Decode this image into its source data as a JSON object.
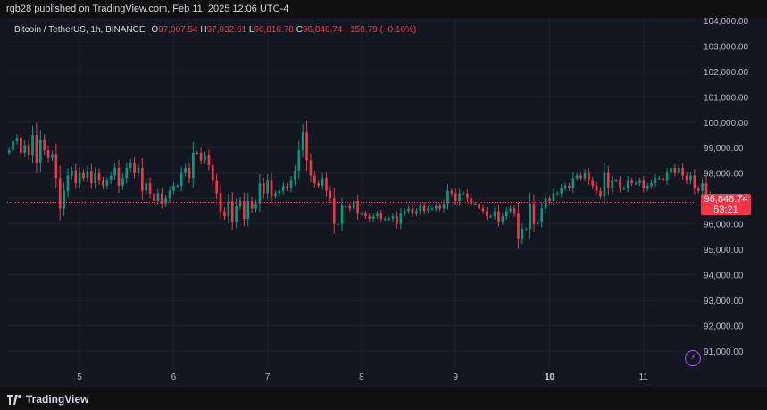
{
  "header": {
    "publish_text": "rgb28 published on TradingView.com, Feb 11, 2025 12:06 UTC-4"
  },
  "legend": {
    "symbol": "Bitcoin / TetherUS, 1h, BINANCE",
    "o_label": "O",
    "o_value": "97,007.54",
    "h_label": "H",
    "h_value": "97,032.61",
    "l_label": "L",
    "l_value": "96,816.78",
    "c_label": "C",
    "c_value": "96,848.74",
    "change": "−158.79 (−0.16%)"
  },
  "price_tag": {
    "price": "96,848.74",
    "countdown": "53:21"
  },
  "footer": {
    "brand": "TradingView"
  },
  "colors": {
    "up": "#089981",
    "down": "#f23645",
    "bg": "#131722",
    "grid": "#1e222d",
    "text": "#b2b5be",
    "last_line": "#f23645",
    "bolt": "#b24bf3"
  },
  "icons": {
    "bolt": "lightning-icon",
    "logo": "tradingview-logo-icon"
  },
  "chart_data": {
    "type": "candlestick",
    "interval": "1h",
    "ylim": [
      90300,
      104100
    ],
    "y_ticks": [
      91000,
      92000,
      93000,
      94000,
      95000,
      96000,
      97000,
      98000,
      99000,
      100000,
      101000,
      102000,
      103000,
      104000
    ],
    "y_tick_labels": [
      "91,000.00",
      "92,000.00",
      "93,000.00",
      "94,000.00",
      "95,000.00",
      "96,000.00",
      "97,000.00",
      "98,000.00",
      "99,000.00",
      "100,000.00",
      "101,000.00",
      "102,000.00",
      "103,000.00",
      "104,000.00"
    ],
    "x_ticks": [
      {
        "label": "5",
        "x": 18
      },
      {
        "label": "6",
        "x": 42
      },
      {
        "label": "7",
        "x": 66
      },
      {
        "label": "8",
        "x": 90
      },
      {
        "label": "9",
        "x": 114
      },
      {
        "label": "10",
        "x": 138
      },
      {
        "label": "11",
        "x": 162
      }
    ],
    "x_range": [
      -0.5,
      175.5
    ],
    "last_price": 96848.74,
    "closes": [
      98900,
      99250,
      99400,
      98800,
      99100,
      98700,
      99500,
      98400,
      99300,
      98900,
      98600,
      98750,
      97800,
      96600,
      97300,
      97900,
      98100,
      97600,
      98000,
      97800,
      98100,
      97600,
      98000,
      97700,
      97500,
      97700,
      97900,
      98200,
      97500,
      97800,
      98200,
      98400,
      98000,
      98200,
      97300,
      97600,
      97200,
      96900,
      97200,
      96800,
      97000,
      97300,
      97500,
      97500,
      98000,
      98200,
      97800,
      98800,
      98800,
      98500,
      98700,
      98300,
      97700,
      97200,
      96500,
      96300,
      96900,
      96100,
      96700,
      96900,
      96200,
      96900,
      96600,
      96800,
      97600,
      97200,
      97700,
      97100,
      97200,
      97300,
      97500,
      97400,
      97700,
      98100,
      98900,
      99600,
      98500,
      97900,
      97600,
      97500,
      97800,
      97300,
      97000,
      96000,
      96000,
      96700,
      96700,
      96600,
      96900,
      96400,
      96400,
      96300,
      96200,
      96300,
      96400,
      96200,
      96200,
      96200,
      96300,
      96000,
      96400,
      96500,
      96600,
      96400,
      96500,
      96700,
      96500,
      96600,
      96600,
      96700,
      96600,
      96800,
      97300,
      97200,
      96900,
      97200,
      97200,
      97000,
      96800,
      96800,
      96600,
      96500,
      96300,
      96300,
      96500,
      96100,
      96300,
      96500,
      96600,
      96400,
      95400,
      95800,
      95800,
      96800,
      96000,
      96100,
      96600,
      97000,
      96900,
      97200,
      97200,
      97400,
      97500,
      97400,
      97800,
      97900,
      97800,
      98000,
      97700,
      97500,
      97300,
      97100,
      98000,
      97400,
      97700,
      97700,
      97400,
      97400,
      97700,
      97600,
      97600,
      97700,
      97400,
      97500,
      97600,
      97800,
      97800,
      97700,
      98000,
      98200,
      98000,
      98200,
      97900,
      97700,
      97900,
      97400,
      97300,
      97600,
      97100,
      96848.74
    ]
  }
}
